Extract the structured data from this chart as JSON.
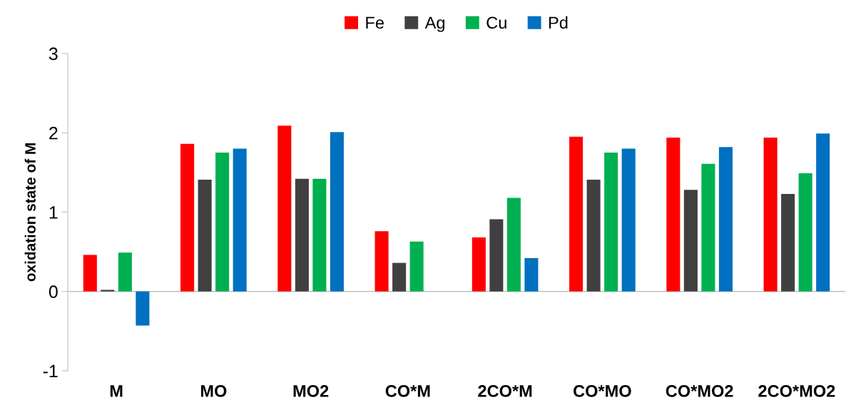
{
  "chart_data": {
    "type": "bar",
    "ylabel": "oxidation state of M",
    "categories": [
      "M",
      "MO",
      "MO2",
      "CO*M",
      "2CO*M",
      "CO*MO",
      "CO*MO2",
      "2CO*MO2"
    ],
    "series": [
      {
        "name": "Fe",
        "color": "#ff0000",
        "values": [
          0.46,
          1.86,
          2.09,
          0.76,
          0.68,
          1.95,
          1.94,
          1.94
        ]
      },
      {
        "name": "Ag",
        "color": "#404040",
        "values": [
          0.02,
          1.41,
          1.42,
          0.36,
          0.91,
          1.41,
          1.28,
          1.23
        ]
      },
      {
        "name": "Cu",
        "color": "#00b050",
        "values": [
          0.49,
          1.75,
          1.42,
          0.63,
          1.18,
          1.75,
          1.61,
          1.49
        ]
      },
      {
        "name": "Pd",
        "color": "#0070c0",
        "values": [
          -0.43,
          1.8,
          2.01,
          0,
          0.42,
          1.8,
          1.82,
          1.99
        ]
      }
    ],
    "ref_lines": [
      {
        "axis": "y",
        "value": 0,
        "color": "#bfbfbf"
      }
    ],
    "ylim": [
      -1,
      3
    ],
    "yticks": [
      -1,
      0,
      1,
      2,
      3
    ],
    "grid": false,
    "legend": "top"
  }
}
